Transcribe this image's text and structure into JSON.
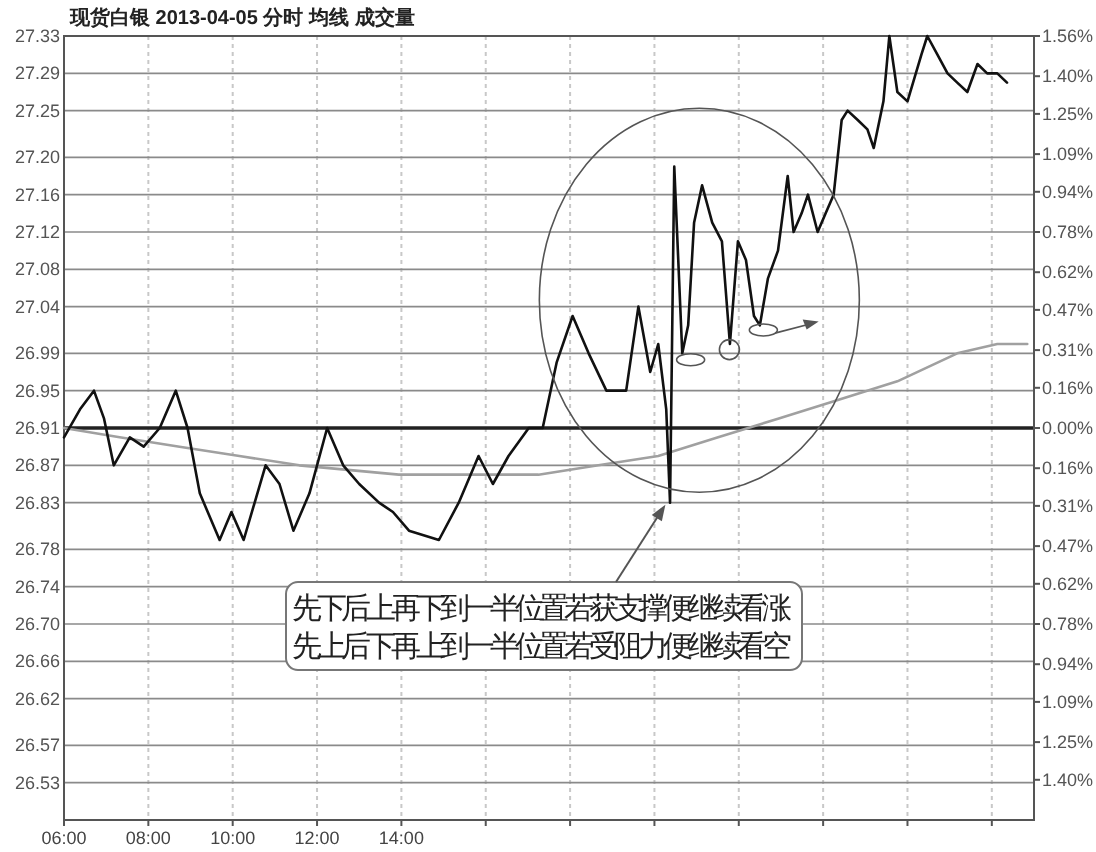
{
  "chart_data": {
    "type": "line",
    "title": "现货白银  2013-04-05 分时 均线 成交量",
    "xlim": [
      6,
      29
    ],
    "xticks": [
      {
        "value": 6,
        "label": "06:00"
      },
      {
        "value": 8,
        "label": "08:00"
      },
      {
        "value": 10,
        "label": "10:00"
      },
      {
        "value": 12,
        "label": "12:00"
      },
      {
        "value": 14,
        "label": "14:00"
      },
      {
        "value": 16,
        "label": null
      },
      {
        "value": 18,
        "label": null
      },
      {
        "value": 20,
        "label": null
      },
      {
        "value": 22,
        "label": null
      },
      {
        "value": 24,
        "label": null
      },
      {
        "value": 26,
        "label": null
      },
      {
        "value": 28,
        "label": null
      }
    ],
    "ylim": [
      26.49,
      27.33
    ],
    "yticks": [
      27.33,
      27.29,
      27.25,
      {
        "value": 27.2,
        "label": "27.20"
      },
      27.16,
      27.12,
      27.08,
      27.04,
      26.99,
      26.95,
      26.91,
      26.87,
      26.83,
      26.78,
      26.74,
      {
        "value": 26.7,
        "label": "26.70"
      },
      26.66,
      26.62,
      26.57,
      26.53
    ],
    "y2lim": [
      -1.56,
      1.56
    ],
    "y2ticks": [
      {
        "value": 1.56,
        "label": "1.56%"
      },
      {
        "value": 1.4,
        "label": "1.40%"
      },
      {
        "value": 1.25,
        "label": "1.25%"
      },
      {
        "value": 1.09,
        "label": "1.09%"
      },
      {
        "value": 0.94,
        "label": "0.94%"
      },
      {
        "value": 0.78,
        "label": "0.78%"
      },
      {
        "value": 0.62,
        "label": "0.62%"
      },
      {
        "value": 0.47,
        "label": "0.47%"
      },
      {
        "value": 0.31,
        "label": "0.31%"
      },
      {
        "value": 0.16,
        "label": "0.16%"
      },
      {
        "value": 0,
        "label": "0.00%"
      },
      {
        "value": -0.16,
        "label": "0.16%"
      },
      {
        "value": -0.31,
        "label": "0.31%"
      },
      {
        "value": -0.47,
        "label": "0.47%"
      },
      {
        "value": -0.62,
        "label": "0.62%"
      },
      {
        "value": -0.78,
        "label": "0.78%"
      },
      {
        "value": -0.94,
        "label": "0.94%"
      },
      {
        "value": -1.09,
        "label": "1.09%"
      },
      {
        "value": -1.25,
        "label": "1.25%"
      },
      {
        "value": -1.4,
        "label": "1.40%"
      }
    ],
    "grid": true,
    "ref_lines": [
      {
        "axis": "y",
        "value": 26.91,
        "color": "#222222"
      }
    ],
    "series": [
      {
        "color": "#111111",
        "x": [
          6.0,
          6.38,
          6.71,
          6.95,
          7.18,
          7.56,
          7.89,
          8.27,
          8.65,
          8.93,
          9.22,
          9.69,
          9.97,
          10.26,
          10.78,
          11.11,
          11.44,
          11.82,
          12.24,
          12.62,
          13.0,
          13.47,
          13.8,
          14.18,
          14.89,
          15.36,
          15.83,
          16.17,
          16.54,
          17.02,
          17.35,
          17.68,
          18.06,
          18.44,
          18.86,
          19.33,
          19.62,
          19.9,
          20.09,
          20.28,
          20.37,
          20.47,
          20.66,
          20.8,
          20.94,
          21.13,
          21.37,
          21.6,
          21.79,
          21.98,
          22.17,
          22.36,
          22.5,
          22.69,
          22.93,
          23.16,
          23.3,
          23.49,
          23.64,
          23.87,
          24.06,
          24.25,
          24.44,
          24.58,
          24.82,
          25.05,
          25.2,
          25.43,
          25.57,
          25.76,
          26.0,
          26.33,
          26.47,
          26.71,
          26.95,
          27.18,
          27.42,
          27.66,
          27.89,
          28.13,
          28.36
        ],
        "values": [
          26.9,
          26.93,
          26.95,
          26.92,
          26.87,
          26.9,
          26.89,
          26.91,
          26.95,
          26.91,
          26.84,
          26.79,
          26.82,
          26.79,
          26.87,
          26.85,
          26.8,
          26.84,
          26.91,
          26.87,
          26.85,
          26.83,
          26.82,
          26.8,
          26.79,
          26.83,
          26.88,
          26.85,
          26.88,
          26.91,
          26.91,
          26.98,
          27.03,
          26.99,
          26.95,
          26.95,
          27.04,
          26.97,
          27.0,
          26.93,
          26.83,
          27.19,
          26.99,
          27.02,
          27.13,
          27.17,
          27.13,
          27.11,
          27.0,
          27.11,
          27.09,
          27.03,
          27.02,
          27.07,
          27.1,
          27.18,
          27.12,
          27.14,
          27.16,
          27.12,
          27.14,
          27.16,
          27.24,
          27.25,
          27.24,
          27.23,
          27.21,
          27.26,
          27.33,
          27.27,
          27.26,
          27.31,
          27.33,
          27.31,
          27.29,
          27.28,
          27.27,
          27.3,
          27.29,
          27.29,
          27.28
        ]
      },
      {
        "color": "#a0a0a0",
        "x": [
          6.0,
          7.32,
          8.74,
          10.16,
          11.58,
          13.94,
          15.83,
          17.25,
          18.67,
          20.09,
          21.51,
          22.93,
          24.35,
          25.76,
          27.18,
          28.13,
          28.84
        ],
        "values": [
          26.91,
          26.9,
          26.89,
          26.88,
          26.87,
          26.86,
          26.86,
          26.86,
          26.87,
          26.88,
          26.9,
          26.92,
          26.94,
          26.96,
          26.99,
          27.0,
          27.0
        ]
      }
    ],
    "annotations": [
      "先下后上再下到一半位置若获支撑便继续看涨",
      "先上后下再上到一半位置若受阻力便继续看空"
    ]
  }
}
